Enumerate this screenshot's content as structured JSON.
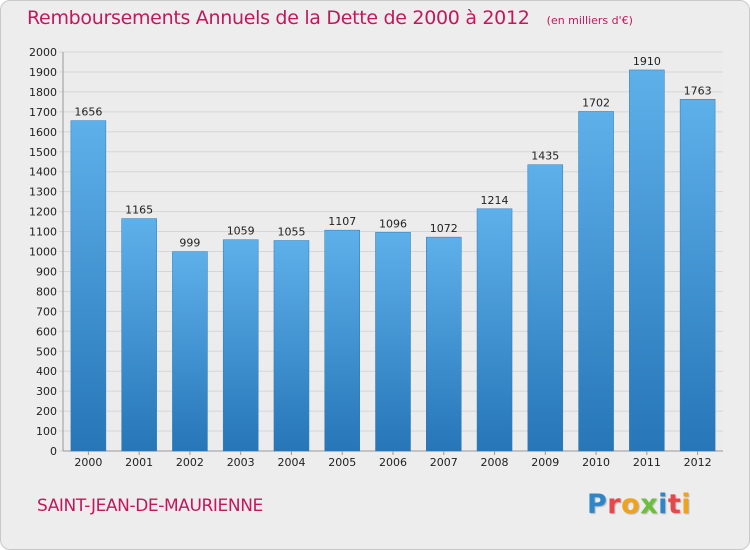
{
  "header": {
    "title": "Remboursements Annuels de la Dette de 2000 à 2012",
    "unit": "(en milliers d'€)"
  },
  "footer": {
    "place": "SAINT-JEAN-DE-MAURIENNE",
    "logo": "Proxiti",
    "logo_letter_colors": [
      "#2d86c9",
      "#e8474a",
      "#f0a21a",
      "#6bbf3a",
      "#2d86c9",
      "#e8474a",
      "#f0a21a"
    ]
  },
  "colors": {
    "bar_top": "#5eb0ea",
    "bar_bottom": "#2676b8",
    "grid": "#d6d6d6",
    "text": "#222222",
    "accent": "#c2185b"
  },
  "chart_data": {
    "type": "bar",
    "title": "Remboursements Annuels de la Dette de 2000 à 2012",
    "xlabel": "",
    "ylabel": "",
    "categories": [
      "2000",
      "2001",
      "2002",
      "2003",
      "2004",
      "2005",
      "2006",
      "2007",
      "2008",
      "2009",
      "2010",
      "2011",
      "2012"
    ],
    "values": [
      1656,
      1165,
      999,
      1059,
      1055,
      1107,
      1096,
      1072,
      1214,
      1435,
      1702,
      1910,
      1763
    ],
    "ylim": [
      0,
      2000
    ],
    "ytick_step": 100,
    "grid": true,
    "data_labels": true
  }
}
